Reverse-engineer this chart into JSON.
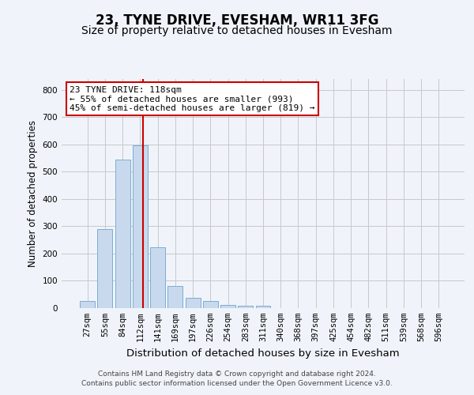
{
  "title": "23, TYNE DRIVE, EVESHAM, WR11 3FG",
  "subtitle": "Size of property relative to detached houses in Evesham",
  "xlabel": "Distribution of detached houses by size in Evesham",
  "ylabel": "Number of detached properties",
  "categories": [
    "27sqm",
    "55sqm",
    "84sqm",
    "112sqm",
    "141sqm",
    "169sqm",
    "197sqm",
    "226sqm",
    "254sqm",
    "283sqm",
    "311sqm",
    "340sqm",
    "368sqm",
    "397sqm",
    "425sqm",
    "454sqm",
    "482sqm",
    "511sqm",
    "539sqm",
    "568sqm",
    "596sqm"
  ],
  "values": [
    27,
    289,
    545,
    598,
    222,
    80,
    37,
    27,
    13,
    10,
    9,
    0,
    0,
    0,
    0,
    0,
    0,
    0,
    0,
    0,
    0
  ],
  "bar_color": "#c9d9ed",
  "bar_edgecolor": "#7aadd4",
  "vline_x": 3.18,
  "vline_color": "#cc0000",
  "annotation_text": "23 TYNE DRIVE: 118sqm\n← 55% of detached houses are smaller (993)\n45% of semi-detached houses are larger (819) →",
  "annotation_box_facecolor": "#ffffff",
  "annotation_box_edgecolor": "#cc0000",
  "ylim": [
    0,
    840
  ],
  "yticks": [
    0,
    100,
    200,
    300,
    400,
    500,
    600,
    700,
    800
  ],
  "grid_color": "#c8c8c8",
  "background_color": "#f0f4fa",
  "axes_background_color": "#f0f4fa",
  "footer_text": "Contains HM Land Registry data © Crown copyright and database right 2024.\nContains public sector information licensed under the Open Government Licence v3.0.",
  "title_fontsize": 12,
  "subtitle_fontsize": 10,
  "xlabel_fontsize": 9.5,
  "ylabel_fontsize": 8.5,
  "tick_fontsize": 7.5,
  "annotation_fontsize": 8,
  "footer_fontsize": 6.5
}
